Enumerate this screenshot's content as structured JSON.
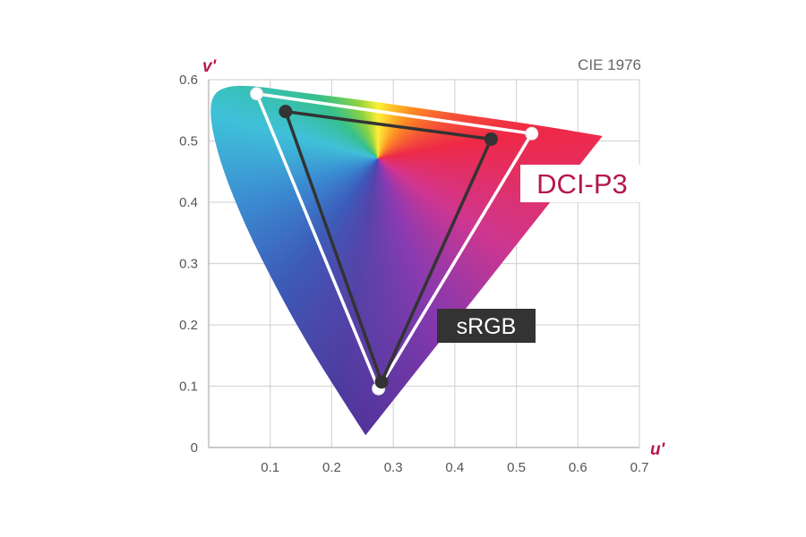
{
  "chart_data": {
    "type": "scatter",
    "title": "",
    "color_space_label": "CIE 1976",
    "xlabel": "u'",
    "ylabel": "v'",
    "xlim": [
      0,
      0.7
    ],
    "ylim": [
      0,
      0.6
    ],
    "x_ticks": [
      "0.1",
      "0.2",
      "0.3",
      "0.4",
      "0.5",
      "0.6",
      "0.7"
    ],
    "y_ticks": [
      "0",
      "0.1",
      "0.2",
      "0.3",
      "0.4",
      "0.5",
      "0.6"
    ],
    "grid": true,
    "locus": [
      [
        0.255,
        0.02
      ],
      [
        0.21,
        0.09
      ],
      [
        0.16,
        0.17
      ],
      [
        0.11,
        0.26
      ],
      [
        0.06,
        0.36
      ],
      [
        0.02,
        0.46
      ],
      [
        0.002,
        0.535
      ],
      [
        0.005,
        0.575
      ],
      [
        0.03,
        0.59
      ],
      [
        0.075,
        0.59
      ],
      [
        0.14,
        0.58
      ],
      [
        0.25,
        0.567
      ],
      [
        0.4,
        0.545
      ],
      [
        0.54,
        0.525
      ],
      [
        0.64,
        0.508
      ]
    ],
    "series": [
      {
        "name": "DCI-P3",
        "color": "#ffffff",
        "points": [
          [
            0.078,
            0.577
          ],
          [
            0.276,
            0.096
          ],
          [
            0.525,
            0.512
          ]
        ]
      },
      {
        "name": "sRGB",
        "color": "#333333",
        "points": [
          [
            0.125,
            0.548
          ],
          [
            0.281,
            0.107
          ],
          [
            0.459,
            0.503
          ]
        ]
      }
    ],
    "colors": {
      "p3_label": "#b5174f",
      "srgb_box": "#333333",
      "grid": "#d6d6d6",
      "tick_text": "#555555"
    }
  }
}
